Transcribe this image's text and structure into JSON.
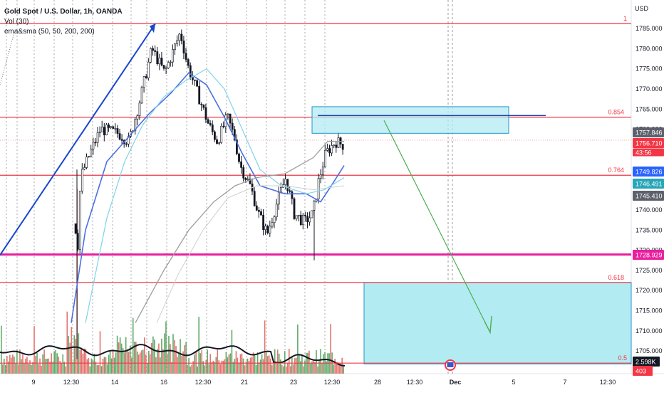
{
  "legend": {
    "title": "Gold Spot / U.S. Dollar, 1h, OANDA",
    "vol": "Vol (30)",
    "ma": "ema&sma (50, 50, 200, 200)"
  },
  "colors": {
    "fib_line": "#f23645",
    "pink_line": "#e91e9e",
    "trend_line": "#1848cc",
    "arrow": "#4caf50",
    "box_fill": "#b3ebf2",
    "box_stroke": "#2196c9",
    "candle_up": "#ffffff",
    "candle_down": "#131722",
    "vol_up": "#62a96a",
    "vol_down": "#e3746e",
    "ma_blue": "#4a6fe0",
    "ma_light": "#7fd3e8",
    "ma_gray": "#9e9e9e",
    "ma_lightgray": "#cfcfcf"
  },
  "chart_data": {
    "type": "candlestick",
    "y_unit": "USD",
    "ylim": [
      1700.8,
      1790.3
    ],
    "y_ticks": [
      "1785.000",
      "1780.000",
      "1775.000",
      "1770.000",
      "1765.000",
      "1760.000",
      "1740.000",
      "1735.000",
      "1730.000",
      "1725.000",
      "1720.000",
      "1715.000",
      "1710.000",
      "1705.000"
    ],
    "x_labels": [
      "9",
      "12:30",
      "14",
      "16",
      "12:30",
      "21",
      "23",
      "12:30",
      "28",
      "12:30",
      "Dec",
      "5",
      "7",
      "12:30"
    ],
    "fib_levels": [
      {
        "label": "1",
        "price": 1786.2
      },
      {
        "label": "0.854",
        "price": 1763.0
      },
      {
        "label": "0.764",
        "price": 1748.6
      },
      {
        "label": "0.618",
        "price": 1722.0
      },
      {
        "label": "0.5",
        "price": 1702.0
      }
    ],
    "support_line": {
      "price": 1728.929
    },
    "price_badges": [
      {
        "text": "1757.846",
        "kind": "gray"
      },
      {
        "text": "1756.710",
        "kind": "red"
      },
      {
        "text": "43:56",
        "kind": "red"
      },
      {
        "text": "1749.826",
        "kind": "blue"
      },
      {
        "text": "1746.491",
        "kind": "teal"
      },
      {
        "text": "1745.410",
        "kind": "gray"
      },
      {
        "text": "1728.929",
        "kind": "pink"
      },
      {
        "text": "2.598K",
        "kind": "dark"
      },
      {
        "text": "403",
        "kind": "red"
      }
    ],
    "upper_box": {
      "top": 1765.6,
      "bottom": 1759.0
    },
    "resistance_line": {
      "price": 1763.4
    },
    "lower_box": {
      "top": 1722.0,
      "bottom": 1701.8
    },
    "vertical_marker_label": "Dec"
  }
}
